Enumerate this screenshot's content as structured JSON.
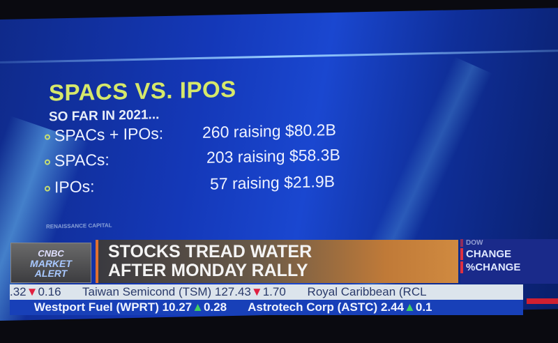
{
  "graphic": {
    "title": "SPACS VS. IPOS",
    "subtitle": "SO FAR IN 2021...",
    "rows": [
      {
        "label": "SPACs + IPOs:",
        "value": "260 raising $80.2B"
      },
      {
        "label": "SPACs:",
        "value": "203 raising $58.3B"
      },
      {
        "label": "IPOs:",
        "value": "57 raising $21.9B"
      }
    ],
    "source": "RENAISSANCE CAPITAL"
  },
  "lower_third": {
    "logo_brand": "CNBC",
    "logo_line1": "MARKET",
    "logo_line2": "ALERT",
    "headline_line1": "STOCKS TREAD WATER",
    "headline_line2": "AFTER MONDAY RALLY",
    "index_label": "DOW",
    "change_label": "CHANGE",
    "pct_change_label": "%CHANGE"
  },
  "ticker": {
    "row1": [
      {
        "name": "",
        "price": ".32",
        "dir": "down",
        "change": "0.16"
      },
      {
        "name": "Taiwan Semicond (TSM)",
        "price": "127.43",
        "dir": "down",
        "change": "1.70"
      },
      {
        "name": "Royal Caribbean (RCL",
        "price": "",
        "dir": "",
        "change": ""
      }
    ],
    "row2": [
      {
        "name": "Westport Fuel (WPRT)",
        "price": "10.27",
        "dir": "up",
        "change": "0.28"
      },
      {
        "name": "Astrotech Corp (ASTC)",
        "price": "2.44",
        "dir": "up",
        "change": "0.1"
      }
    ]
  },
  "colors": {
    "title": "#d6e86a",
    "background": "#1438b8",
    "down": "#e02040",
    "up": "#40d060"
  }
}
